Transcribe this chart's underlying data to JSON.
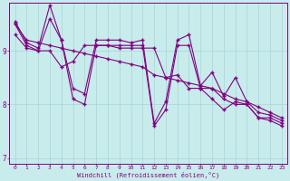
{
  "lines": [
    [
      9.5,
      9.1,
      9.0,
      9.6,
      9.2,
      8.1,
      8.0,
      9.1,
      9.1,
      9.1,
      9.1,
      9.1,
      7.6,
      7.9,
      9.1,
      9.1,
      8.3,
      8.3,
      8.1,
      8.0,
      8.0,
      7.75,
      7.75,
      7.65
    ],
    [
      9.3,
      9.05,
      9.0,
      9.0,
      8.7,
      8.8,
      9.1,
      9.1,
      9.1,
      9.05,
      9.05,
      9.05,
      9.05,
      8.5,
      8.55,
      8.3,
      8.3,
      8.1,
      7.9,
      8.05,
      8.0,
      7.75,
      7.7,
      7.6
    ],
    [
      9.5,
      9.2,
      9.15,
      9.1,
      9.05,
      9.0,
      8.95,
      8.9,
      8.85,
      8.8,
      8.75,
      8.7,
      8.55,
      8.5,
      8.45,
      8.4,
      8.35,
      8.3,
      8.2,
      8.1,
      8.05,
      7.95,
      7.85,
      7.75
    ],
    [
      9.55,
      9.15,
      9.05,
      9.85,
      9.2,
      8.3,
      8.2,
      9.2,
      9.2,
      9.2,
      9.15,
      9.2,
      7.65,
      8.05,
      9.2,
      9.3,
      8.35,
      8.6,
      8.15,
      8.5,
      8.05,
      7.85,
      7.8,
      7.7
    ]
  ],
  "x_hours": [
    0,
    1,
    2,
    3,
    4,
    5,
    6,
    7,
    8,
    9,
    10,
    11,
    12,
    13,
    14,
    15,
    16,
    17,
    18,
    19,
    20,
    21,
    22,
    23
  ],
  "line_color": "#800080",
  "marker": "+",
  "bg_color": "#c8ecec",
  "xlabel": "Windchill (Refroidissement éolien,°C)",
  "xlim": [
    -0.5,
    23.5
  ],
  "ylim": [
    6.9,
    9.9
  ],
  "yticks": [
    7,
    8,
    9
  ],
  "xticks": [
    0,
    1,
    2,
    3,
    4,
    5,
    6,
    7,
    8,
    9,
    10,
    11,
    12,
    13,
    14,
    15,
    16,
    17,
    18,
    19,
    20,
    21,
    22,
    23
  ],
  "axis_color": "#800080",
  "grid_color": "#a8d4d4",
  "font_color": "#800080",
  "linewidth": 0.8,
  "markersize": 3.5,
  "markeredgewidth": 1.0
}
